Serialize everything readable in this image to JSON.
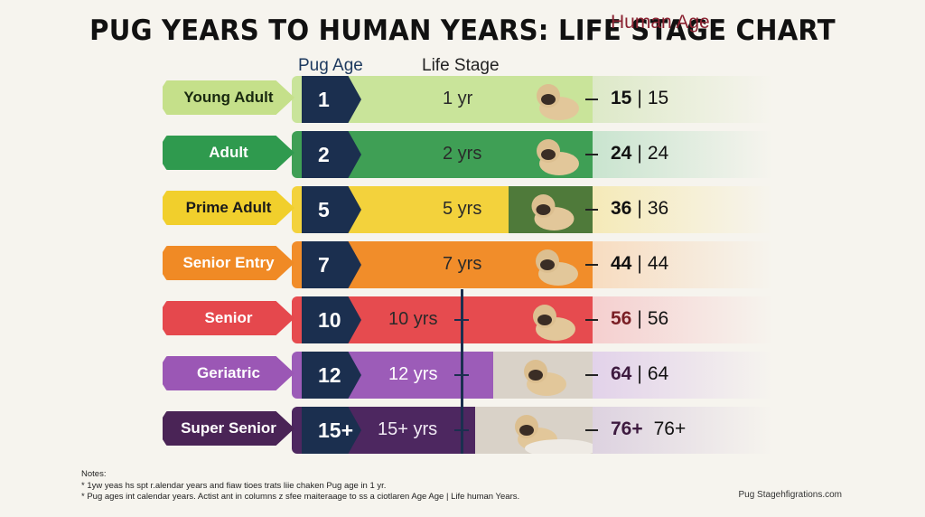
{
  "title": "PUG YEARS TO HUMAN YEARS: LIFE STAGE CHART",
  "headers": {
    "pug_age": "Pug Age",
    "life_stage": "Life Stage",
    "human_age": "Human Age"
  },
  "rows": [
    {
      "stage": "Young Adult",
      "pug": "1",
      "label": "1 yr",
      "human_bold": "15",
      "human_alt": "15",
      "pill": "#c5e08a",
      "pill_text": "#1a2a10",
      "band": "#c9e49a",
      "glow": "#dde9c8"
    },
    {
      "stage": "Adult",
      "pug": "2",
      "label": "2 yrs",
      "human_bold": "24",
      "human_alt": "24",
      "pill": "#2f9a4e",
      "pill_text": "#ffffff",
      "band": "#3f9f55",
      "glow": "#c9e4cf"
    },
    {
      "stage": "Prime Adult",
      "pug": "5",
      "label": "5 yrs",
      "human_bold": "36",
      "human_alt": "36",
      "pill": "#f1cf2c",
      "pill_text": "#1a1a1a",
      "band": "#f3d23c",
      "glow": "#f5eab8"
    },
    {
      "stage": "Senior Entry",
      "pug": "7",
      "label": "7 yrs",
      "human_bold": "44",
      "human_alt": "44",
      "pill": "#f08a25",
      "pill_text": "#ffffff",
      "band": "#f18d2a",
      "glow": "#f7dcc0"
    },
    {
      "stage": "Senior",
      "pug": "10",
      "label": "10 yrs",
      "human_bold": "56",
      "human_alt": "56",
      "pill": "#e5484d",
      "pill_text": "#ffffff",
      "band": "#e64b4f",
      "glow": "#f5cfcf"
    },
    {
      "stage": "Geriatric",
      "pug": "12",
      "label": "12 yrs",
      "human_bold": "64",
      "human_alt": "64",
      "pill": "#9b57b5",
      "pill_text": "#ffffff",
      "band": "#9c5cb8",
      "glow": "#e2d2ea"
    },
    {
      "stage": "Super Senior",
      "pug": "15+",
      "label": "15+ yrs",
      "human_bold": "76+",
      "human_alt": "76+",
      "pill": "#4a2456",
      "pill_text": "#ffffff",
      "band": "#4d2760",
      "glow": "#ddd2e0"
    }
  ],
  "chart_data": {
    "type": "table",
    "title": "PUG YEARS TO HUMAN YEARS: LIFE STAGE CHART",
    "columns": [
      "Pug Age",
      "Life Stage",
      "Human Age"
    ],
    "categories": [
      "Young Adult",
      "Adult",
      "Prime Adult",
      "Senior Entry",
      "Senior",
      "Geriatric",
      "Super Senior"
    ],
    "pug_age": [
      "1",
      "2",
      "5",
      "7",
      "10",
      "12",
      "15+"
    ],
    "human_age": [
      "15",
      "24",
      "36",
      "44",
      "56",
      "64",
      "76+"
    ]
  },
  "notes": {
    "heading": "Notes:",
    "line1": "* 1yw yeas hs spt r.alendar years and fiaw tioes trats liie chaken Pug age in 1 yr.",
    "line2": "* Pug ages int calendar years. Actist ant in columns z sfee maiteraage to ss a ciotlaren Age Age | Life human Years."
  },
  "credit": "Pug Stagehfigrations.com"
}
